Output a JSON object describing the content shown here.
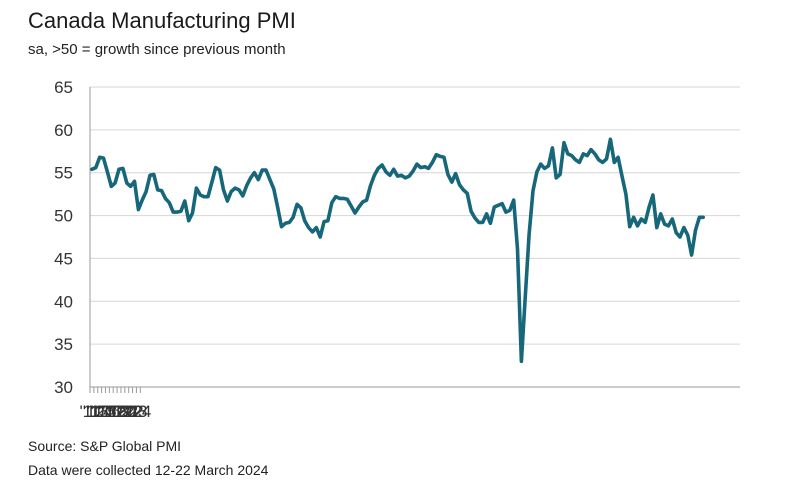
{
  "chart_data": {
    "type": "line",
    "title": "Canada Manufacturing PMI",
    "subtitle": "sa, >50 = growth since previous month",
    "source": "Source: S&P Global PMI",
    "note": "Data were collected 12-22 March 2024",
    "xlabel": "",
    "ylabel": "",
    "ylim": [
      30,
      65
    ],
    "yticks": [
      "30",
      "35",
      "40",
      "45",
      "50",
      "55",
      "60",
      "65"
    ],
    "xticks": [
      "'11",
      "'12",
      "'13",
      "'14",
      "'15",
      "'16",
      "'17",
      "'18",
      "'19",
      "'20",
      "'21",
      "'22",
      "'23",
      "'24"
    ],
    "grid": true,
    "line_color": "#17677a",
    "series": [
      {
        "name": "Canada Manufacturing PMI",
        "start": "2011-01",
        "values": [
          55.4,
          55.6,
          56.8,
          56.7,
          55.1,
          53.4,
          53.8,
          55.4,
          55.5,
          53.8,
          53.4,
          54.0,
          50.7,
          51.8,
          52.8,
          54.7,
          54.8,
          53.0,
          52.9,
          52.0,
          51.5,
          50.4,
          50.4,
          50.5,
          51.7,
          49.4,
          50.3,
          53.2,
          52.4,
          52.2,
          52.2,
          53.9,
          55.6,
          55.3,
          53.0,
          51.7,
          52.8,
          53.2,
          53.0,
          52.3,
          53.5,
          54.4,
          55.0,
          54.2,
          55.3,
          55.3,
          54.2,
          53.1,
          51.0,
          48.7,
          49.1,
          49.2,
          49.8,
          51.3,
          50.9,
          49.4,
          48.6,
          48.1,
          48.6,
          47.5,
          49.3,
          49.4,
          51.5,
          52.2,
          52.0,
          52.0,
          51.9,
          51.1,
          50.3,
          51.0,
          51.6,
          51.8,
          53.5,
          54.7,
          55.5,
          55.9,
          55.1,
          54.7,
          55.4,
          54.6,
          54.7,
          54.4,
          54.6,
          55.2,
          56.0,
          55.6,
          55.7,
          55.5,
          56.2,
          57.1,
          56.9,
          56.8,
          54.8,
          53.9,
          54.9,
          53.6,
          53.0,
          52.6,
          50.5,
          49.7,
          49.2,
          49.2,
          50.2,
          49.1,
          51.0,
          51.2,
          51.4,
          50.4,
          50.6,
          51.8,
          46.1,
          33.0,
          40.6,
          47.8,
          52.9,
          55.1,
          56.0,
          55.5,
          55.8,
          57.9,
          54.4,
          54.8,
          58.5,
          57.2,
          57.0,
          56.5,
          56.2,
          57.2,
          57.0,
          57.7,
          57.2,
          56.5,
          56.2,
          56.6,
          58.9,
          56.2,
          56.8,
          54.6,
          52.5,
          48.7,
          49.8,
          48.8,
          49.6,
          49.2,
          51.0,
          52.4,
          48.6,
          50.2,
          49.0,
          48.8,
          49.6,
          48.0,
          47.5,
          48.6,
          47.7,
          45.4,
          48.3,
          49.8,
          49.8
        ]
      }
    ]
  }
}
